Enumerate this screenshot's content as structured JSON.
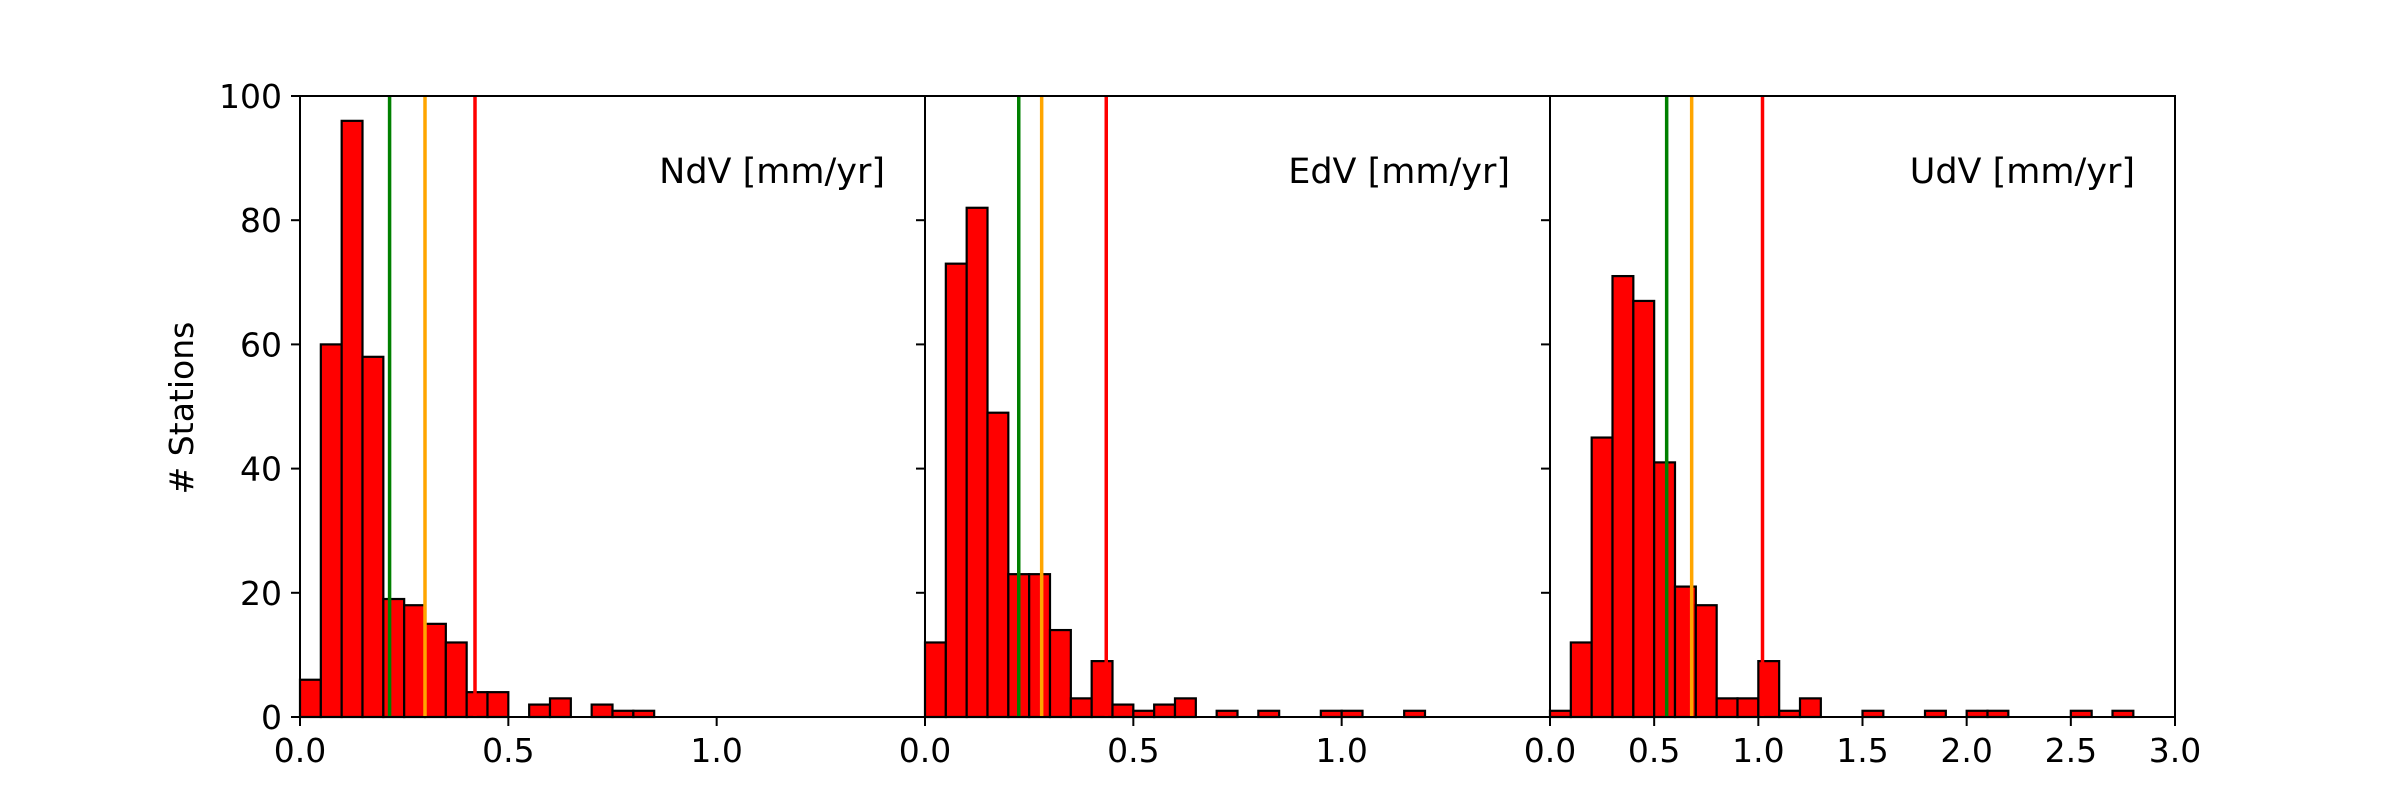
{
  "chart_data": {
    "type": "bar",
    "figure": "histogram",
    "ylabel": "# Stations",
    "ylim": [
      0,
      100
    ],
    "yticks": [
      0,
      20,
      40,
      60,
      80,
      100
    ],
    "bar_color": "#ff0000",
    "bar_edge_color": "#000000",
    "threshold_colors": [
      "#008000",
      "#ffa500",
      "#ff0000"
    ],
    "panels": [
      {
        "title": "NdV [mm/yr]",
        "xlim": [
          0.0,
          1.5
        ],
        "xticks": [
          0.0,
          0.5,
          1.0
        ],
        "xtick_labels": [
          "0.0",
          "0.5",
          "1.0"
        ],
        "bin_width": 0.05,
        "bin_start": 0.0,
        "counts": [
          6,
          60,
          96,
          58,
          19,
          18,
          15,
          12,
          4,
          4,
          0,
          2,
          3,
          0,
          2,
          1,
          1
        ],
        "thresholds": [
          0.215,
          0.3,
          0.42
        ]
      },
      {
        "title": "EdV [mm/yr]",
        "xlim": [
          0.0,
          1.5
        ],
        "xticks": [
          0.0,
          0.5,
          1.0
        ],
        "xtick_labels": [
          "0.0",
          "0.5",
          "1.0"
        ],
        "bin_width": 0.05,
        "bin_start": 0.0,
        "counts": [
          12,
          73,
          82,
          49,
          23,
          23,
          14,
          3,
          9,
          2,
          1,
          2,
          3,
          0,
          1,
          0,
          1,
          0,
          0,
          1,
          1,
          0,
          0,
          1
        ],
        "thresholds": [
          0.225,
          0.28,
          0.435
        ]
      },
      {
        "title": "UdV [mm/yr]",
        "xlim": [
          0.0,
          3.0
        ],
        "xticks": [
          0.0,
          0.5,
          1.0,
          1.5,
          2.0,
          2.5,
          3.0
        ],
        "xtick_labels": [
          "0.0",
          "0.5",
          "1.0",
          "1.5",
          "2.0",
          "2.5",
          "3.0"
        ],
        "bin_width": 0.1,
        "bin_start": 0.0,
        "counts": [
          1,
          12,
          45,
          71,
          67,
          41,
          21,
          18,
          3,
          3,
          9,
          1,
          3,
          0,
          0,
          1,
          0,
          0,
          1,
          0,
          1,
          1,
          0,
          0,
          0,
          1,
          0,
          1
        ],
        "thresholds": [
          0.56,
          0.68,
          1.02
        ]
      }
    ]
  }
}
